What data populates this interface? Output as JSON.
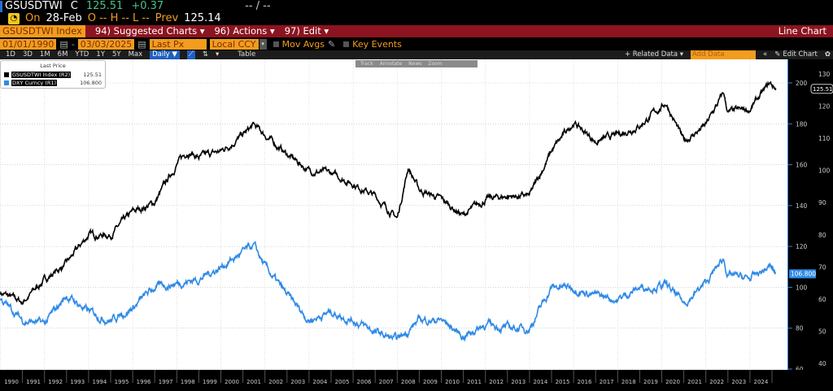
{
  "header": {
    "ticker": "GSUSDTWI",
    "c_label": "C",
    "last": "125.51",
    "change": "+0.37",
    "bidask": "-- / --",
    "on_label": "On",
    "date": "28-Feb",
    "ohlc": "O -- H -- L --",
    "prev_label": "Prev",
    "prev": "125.14"
  },
  "menu": {
    "security": "GSUSDTWI Index",
    "suggested": "94) Suggested Charts ▾",
    "actions": "96) Actions ▾",
    "edit": "97) Edit ▾",
    "chart_type": "Line Chart"
  },
  "controls": {
    "start_date": "01/01/1990",
    "end_date": "03/03/2025",
    "field": "Last Px",
    "currency": "Local CCY",
    "mov_avgs": "Mov Avgs",
    "key_events": "Key Events"
  },
  "periods": [
    "1D",
    "3D",
    "1M",
    "6M",
    "YTD",
    "1Y",
    "5Y",
    "Max"
  ],
  "frequency": "Daily ▼",
  "table_label": "Table",
  "related_data": "+ Related Data ▾",
  "add_data_placeholder": "Add Data",
  "edit_chart": "Edit Chart",
  "toolbar": [
    "Track",
    "Annotate",
    "News",
    "Zoom"
  ],
  "chart_data": {
    "type": "line",
    "legend_title": "Last Price",
    "legend_placement": "top-left",
    "series": [
      {
        "name": "GSUSDTWI Index (R2)",
        "last_label": "125.51",
        "color": "#000000",
        "axis": "R2",
        "x": [
          1990,
          1991,
          1992,
          1993,
          1994,
          1995,
          1996,
          1997,
          1998,
          1998.5,
          1999,
          2000,
          2001,
          2001.5,
          2002,
          2003,
          2004,
          2005,
          2006,
          2007,
          2008,
          2008.5,
          2009,
          2010,
          2011,
          2012,
          2013,
          2014,
          2015,
          2016,
          2017,
          2018,
          2019,
          2020.2,
          2021,
          2022,
          2022.8,
          2023,
          2024,
          2024.9,
          2025.17
        ],
        "y": [
          62,
          59,
          66,
          71,
          80,
          80,
          87,
          90,
          102,
          106,
          104,
          106,
          111,
          114,
          111,
          105,
          100,
          99,
          96,
          92,
          85,
          101,
          94,
          91,
          86,
          91,
          92,
          92,
          106,
          115,
          109,
          111,
          114,
          121,
          109,
          114,
          124,
          118,
          119,
          127,
          125.51
        ]
      },
      {
        "name": "DXY Curncy (R1)",
        "last_label": "106.800",
        "color": "#2f8ae6",
        "axis": "R1",
        "x": [
          1990,
          1991,
          1992,
          1993,
          1994,
          1995,
          1996,
          1997,
          1998,
          1999,
          2000,
          2001,
          2001.5,
          2002,
          2003,
          2004,
          2005,
          2006,
          2007,
          2008,
          2009,
          2010,
          2011,
          2012,
          2013,
          2014,
          2015,
          2016,
          2017,
          2018,
          2019,
          2020.2,
          2021,
          2022,
          2022.8,
          2023,
          2024,
          2024.9,
          2025.17
        ],
        "y": [
          94,
          84,
          82,
          96,
          88,
          84,
          90,
          100,
          102,
          104,
          110,
          117,
          120,
          110,
          96,
          84,
          88,
          84,
          78,
          74,
          84,
          84,
          76,
          82,
          80,
          80,
          100,
          100,
          96,
          94,
          100,
          101,
          92,
          102,
          114,
          106,
          104,
          110,
          106.8
        ]
      }
    ],
    "x_ticks": [
      "1990",
      "1991",
      "1992",
      "1993",
      "1994",
      "1995",
      "1996",
      "1997",
      "1998",
      "1999",
      "2000",
      "2001",
      "2002",
      "2003",
      "2004",
      "2005",
      "2006",
      "2007",
      "2008",
      "2009",
      "2010",
      "2011",
      "2012",
      "2013",
      "2014",
      "2015",
      "2016",
      "2017",
      "2018",
      "2019",
      "2020",
      "2021",
      "2022",
      "2023",
      "2024"
    ],
    "r1_ticks": [
      200,
      180,
      160,
      140,
      120,
      100,
      80,
      60
    ],
    "r1_range": [
      60,
      200
    ],
    "r2_ticks": [
      130,
      120,
      110,
      100,
      90,
      80,
      70,
      60,
      50,
      40
    ],
    "r2_range": [
      40,
      130
    ],
    "grid": true
  }
}
